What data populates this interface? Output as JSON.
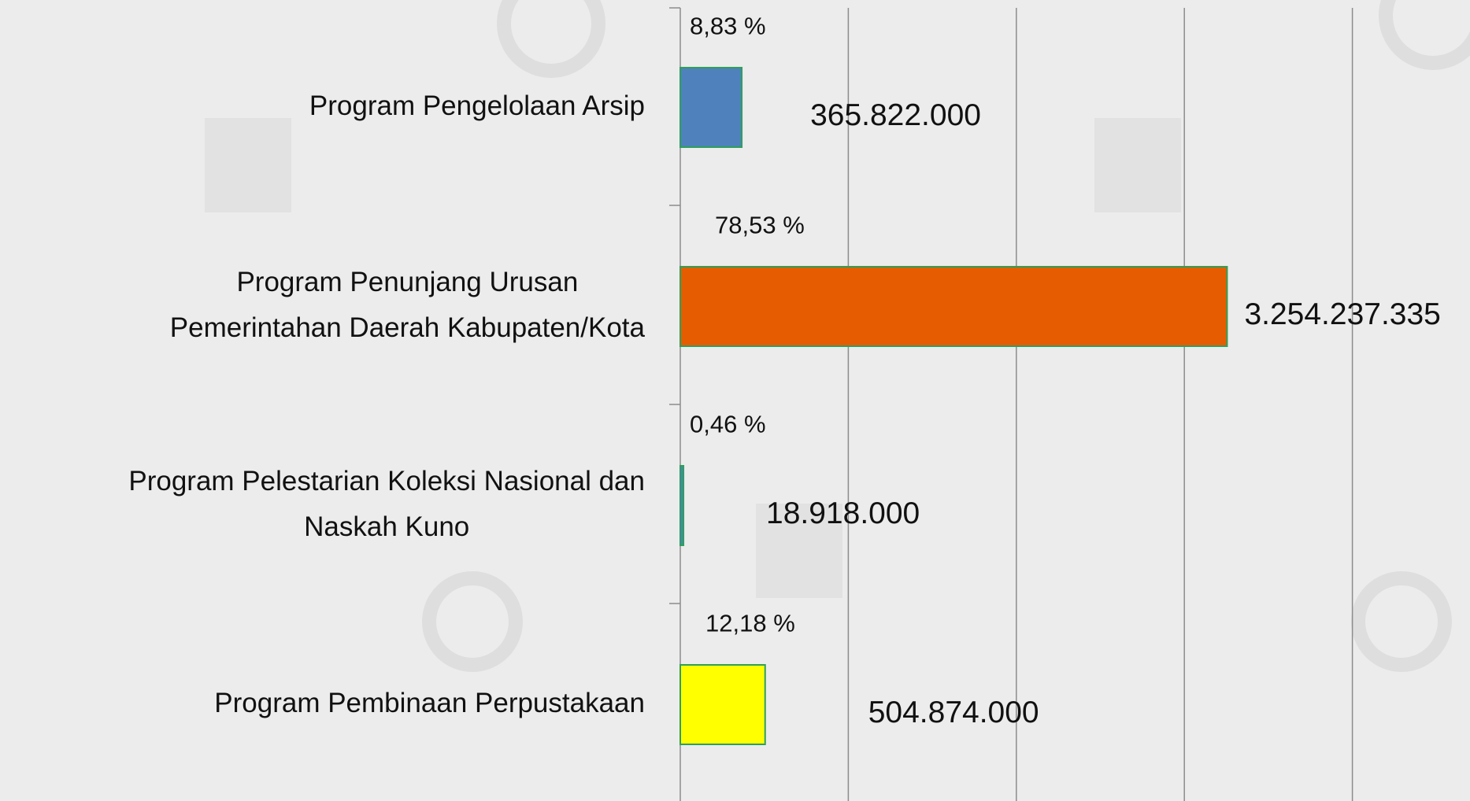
{
  "chart_data": {
    "type": "bar",
    "orientation": "horizontal",
    "categories": [
      [
        "Program Pengelolaan Arsip"
      ],
      [
        "Program Penunjang Urusan",
        "Pemerintahan Daerah Kabupaten/Kota"
      ],
      [
        "Program Pelestarian Koleksi Nasional dan",
        "Naskah Kuno"
      ],
      [
        "Program Pembinaan Perpustakaan"
      ]
    ],
    "values": [
      365822000,
      3254237335,
      18918000,
      504874000
    ],
    "value_labels": [
      "365.822.000",
      "3.254.237.335",
      "18.918.000",
      "504.874.000"
    ],
    "percent_labels": [
      "8,83 %",
      "78,53 %",
      "0,46 %",
      "12,18 %"
    ],
    "colors": [
      "#4f81bd",
      "#e65c00",
      "#4f81bd",
      "#ffff00"
    ],
    "edge_color": "#2ea05a",
    "xlim": [
      0,
      4700000000
    ],
    "xticks": [
      0,
      1000000000,
      2000000000,
      3000000000,
      4000000000
    ],
    "grid": true
  }
}
